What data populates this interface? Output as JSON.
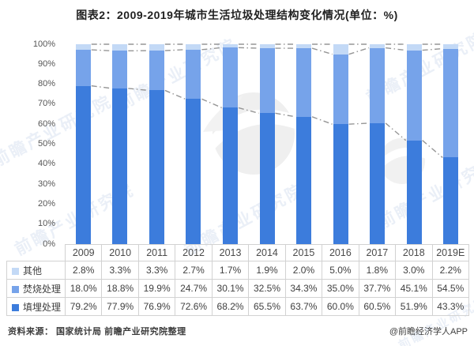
{
  "title": "图表2：2009-2019年城市生活垃圾处理结构变化情况(单位：%)",
  "chart_data": {
    "type": "bar",
    "stacked": true,
    "title": "图表2：2009-2019年城市生活垃圾处理结构变化情况(单位：%)",
    "categories": [
      "2009",
      "2010",
      "2011",
      "2012",
      "2013",
      "2014",
      "2015",
      "2016",
      "2017",
      "2018",
      "2019E"
    ],
    "series": [
      {
        "name": "填埋处理",
        "color": "#3c7cdc",
        "values": [
          79.2,
          77.9,
          76.9,
          72.6,
          68.2,
          65.5,
          63.7,
          60.0,
          60.5,
          51.9,
          43.3
        ]
      },
      {
        "name": "焚烧处理",
        "color": "#76a3ea",
        "values": [
          18.0,
          18.8,
          19.9,
          24.7,
          30.1,
          32.5,
          34.3,
          35.0,
          37.7,
          45.1,
          54.5
        ]
      },
      {
        "name": "其他",
        "color": "#c3d9f6",
        "values": [
          2.8,
          3.3,
          3.3,
          2.7,
          1.7,
          1.9,
          2.0,
          5.0,
          1.8,
          3.0,
          2.2
        ]
      }
    ],
    "table_row_order": [
      "其他",
      "焚烧处理",
      "填埋处理"
    ],
    "value_suffix": "%",
    "xlabel": "",
    "ylabel": "",
    "ylim": [
      0,
      100
    ],
    "ytick_step": 10,
    "ytick_suffix": "%",
    "grid": false,
    "legend_position": "table-left-column",
    "series_lines": {
      "show": true,
      "color": "#969696",
      "style": "dash-dot",
      "levels": [
        "填埋处理-top",
        "焚烧处理-top",
        "100%-total"
      ]
    }
  },
  "footer": {
    "source": "资料来源： 国家统计局 前瞻产业研究院整理",
    "credit": "@前瞻经济学人APP"
  },
  "watermark": {
    "text": "前瞻产业研究院",
    "logo": "qianzhan-globe-logo"
  }
}
